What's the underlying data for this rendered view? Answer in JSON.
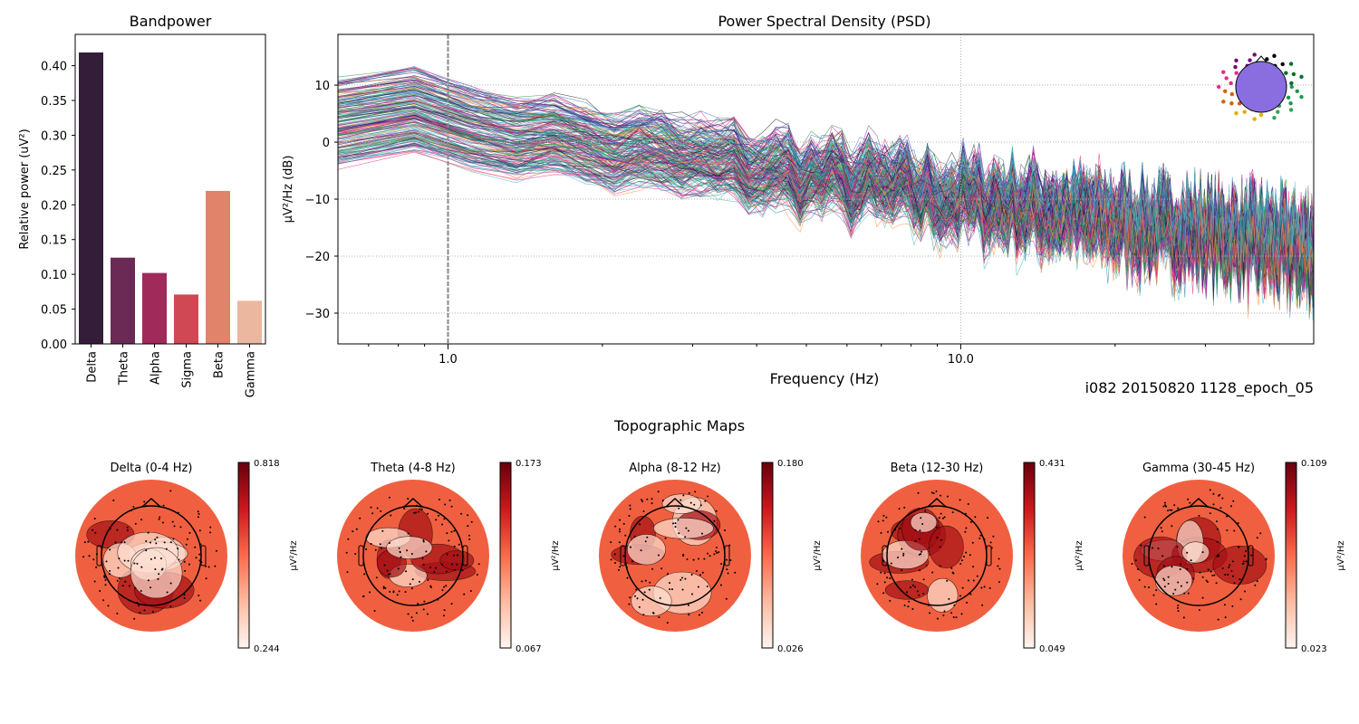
{
  "chart_data": [
    {
      "type": "bar",
      "title": "Bandpower",
      "xlabel": "",
      "ylabel": "Relative power (uV²)",
      "categories": [
        "Delta",
        "Theta",
        "Alpha",
        "Sigma",
        "Beta",
        "Gamma"
      ],
      "values": [
        0.419,
        0.124,
        0.102,
        0.071,
        0.22,
        0.062
      ],
      "colors": [
        "#341d39",
        "#6a2a55",
        "#a02a5a",
        "#d04853",
        "#e0836a",
        "#ebb79e"
      ],
      "ylim": [
        0,
        0.445
      ],
      "yticks": [
        "0.00",
        "0.05",
        "0.10",
        "0.15",
        "0.20",
        "0.25",
        "0.30",
        "0.35",
        "0.40"
      ]
    },
    {
      "type": "line",
      "title": "Power Spectral Density (PSD)",
      "xlabel": "Frequency (Hz)",
      "ylabel": "µV²/Hz (dB)",
      "xscale": "log",
      "xlim": [
        0.61,
        48.8
      ],
      "ylim": [
        -35.4,
        18.9
      ],
      "xticks": [
        "1.0",
        "10.0"
      ],
      "yticks": [
        "10",
        "0",
        "−10",
        "−20",
        "−30"
      ],
      "grid": true,
      "vline_x": 1.0,
      "n_channels": 200,
      "mean_trend": {
        "x": [
          0.61,
          1,
          2,
          5,
          10,
          20,
          48.8
        ],
        "y": [
          5,
          4,
          -1,
          -6,
          -10,
          -14,
          -19
        ]
      },
      "legend": "sensor-position inset top-right"
    }
  ],
  "subject_label": "i082 20150820 1128_epoch_05",
  "topo": {
    "title": "Topographic Maps",
    "unit": "µV²/Hz",
    "maps": [
      {
        "title": "Delta (0-4 Hz)",
        "vmax": "0.818",
        "vmin": "0.244"
      },
      {
        "title": "Theta (4-8 Hz)",
        "vmax": "0.173",
        "vmin": "0.067"
      },
      {
        "title": "Alpha (8-12 Hz)",
        "vmax": "0.180",
        "vmin": "0.026"
      },
      {
        "title": "Beta (12-30 Hz)",
        "vmax": "0.431",
        "vmin": "0.049"
      },
      {
        "title": "Gamma (30-45 Hz)",
        "vmax": "0.109",
        "vmin": "0.023"
      }
    ]
  }
}
